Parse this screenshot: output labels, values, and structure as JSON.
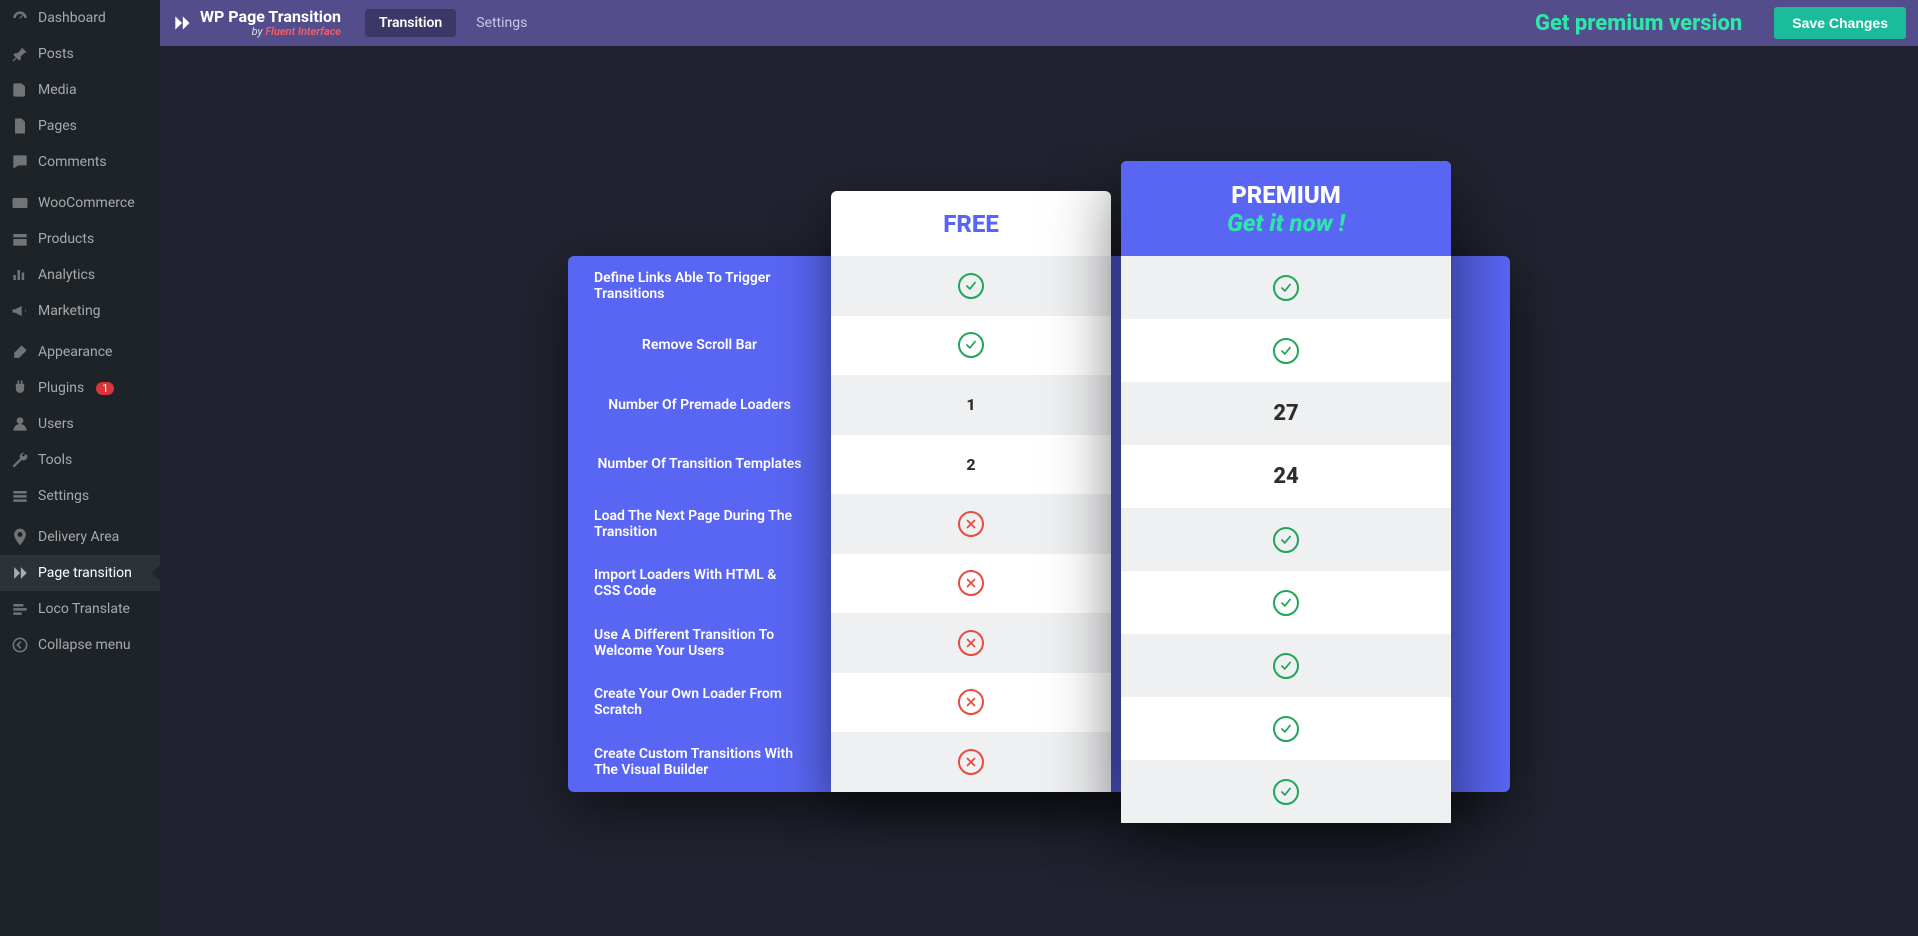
{
  "sidebar": {
    "items": [
      {
        "icon": "dashboard",
        "label": "Dashboard"
      },
      {
        "icon": "pin",
        "label": "Posts"
      },
      {
        "icon": "media",
        "label": "Media"
      },
      {
        "icon": "page",
        "label": "Pages"
      },
      {
        "icon": "comment",
        "label": "Comments"
      },
      {
        "sep": true
      },
      {
        "icon": "woo",
        "label": "WooCommerce"
      },
      {
        "icon": "products",
        "label": "Products"
      },
      {
        "icon": "analytics",
        "label": "Analytics"
      },
      {
        "icon": "megaphone",
        "label": "Marketing"
      },
      {
        "sep": true
      },
      {
        "icon": "brush",
        "label": "Appearance"
      },
      {
        "icon": "plug",
        "label": "Plugins",
        "badge": "1"
      },
      {
        "icon": "user",
        "label": "Users"
      },
      {
        "icon": "wrench",
        "label": "Tools"
      },
      {
        "icon": "settings",
        "label": "Settings"
      },
      {
        "sep": true
      },
      {
        "icon": "marker",
        "label": "Delivery Area"
      },
      {
        "icon": "transition",
        "label": "Page transition",
        "active": true
      },
      {
        "icon": "loco",
        "label": "Loco Translate"
      },
      {
        "icon": "collapse",
        "label": "Collapse menu"
      }
    ]
  },
  "topbar": {
    "brand_title": "WP Page Transition",
    "brand_by": "by ",
    "brand_author": "Fluent Interface",
    "tabs": [
      {
        "label": "Transition",
        "active": true
      },
      {
        "label": "Settings",
        "active": false
      }
    ],
    "premium_link": "Get premium version",
    "save_label": "Save Changes"
  },
  "compare": {
    "free_header": "FREE",
    "premium_header": "PREMIUM",
    "premium_cta": "Get it now !",
    "colors": {
      "card_bg": "#ffffff",
      "panel_bg": "#5966f3",
      "stripe_bg": "#eef0f2",
      "yes": "#22a559",
      "no": "#e74c3c",
      "free_title": "#5966f3",
      "prem_cta": "#2ee6a8"
    },
    "rows": [
      {
        "label": "Define Links Able To Trigger Transitions",
        "free": "yes",
        "premium": "yes"
      },
      {
        "label": "Remove Scroll Bar",
        "free": "yes",
        "premium": "yes"
      },
      {
        "label": "Number Of Premade Loaders",
        "free": "1",
        "premium": "27"
      },
      {
        "label": "Number Of Transition Templates",
        "free": "2",
        "premium": "24"
      },
      {
        "label": "Load The Next Page During The Transition",
        "free": "no",
        "premium": "yes"
      },
      {
        "label": "Import Loaders With HTML & CSS Code",
        "free": "no",
        "premium": "yes"
      },
      {
        "label": "Use A Different Transition To Welcome Your Users",
        "free": "no",
        "premium": "yes"
      },
      {
        "label": "Create Your Own Loader From Scratch",
        "free": "no",
        "premium": "yes"
      },
      {
        "label": "Create Custom Transitions With The Visual Builder",
        "free": "no",
        "premium": "yes"
      }
    ]
  }
}
